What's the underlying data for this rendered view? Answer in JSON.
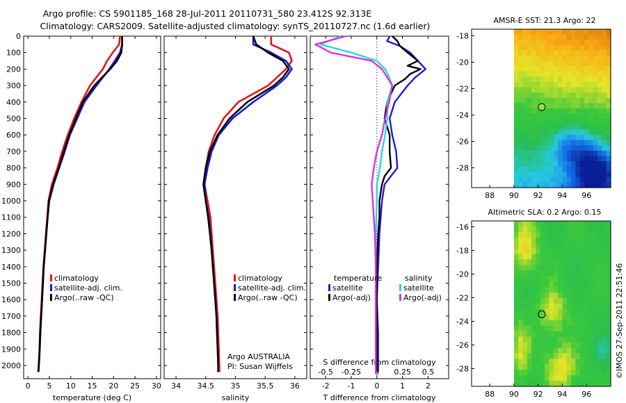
{
  "header": {
    "line1": "Argo profile: CS 5901185_168 28-Jul-2011 20110731_580 23.412S 92.313E",
    "line2": "Climatology: CARS2009. Satellite-adjusted climatology: synTS_20110727.nc (1.6d earlier)"
  },
  "side_label": "©IMOS 27-Sep-2011 22:51:46",
  "colors": {
    "climatology": "#e8141a",
    "satellite": "#1a1ad8",
    "argo": "#000000",
    "sal_satellite": "#25d8e0",
    "sal_argo": "#e030e0"
  },
  "chart_data": [
    {
      "type": "line",
      "id": "temperature",
      "xlabel": "temperature (deg C)",
      "ylabel": "",
      "xlim": [
        -1,
        31
      ],
      "ylim": [
        2080,
        0
      ],
      "x_ticks": [
        0,
        5,
        10,
        15,
        20,
        25,
        30
      ],
      "y_ticks": [
        0,
        100,
        200,
        300,
        400,
        500,
        600,
        700,
        800,
        900,
        1000,
        1100,
        1200,
        1300,
        1400,
        1500,
        1600,
        1700,
        1800,
        1900,
        2000
      ],
      "legend": [
        "climatology",
        "satellite-adj. clim.",
        "Argo(..raw -QC)"
      ],
      "series": [
        {
          "name": "climatology",
          "color": "#e8141a",
          "depth": [
            0,
            50,
            100,
            150,
            200,
            300,
            400,
            500,
            600,
            700,
            800,
            900,
            1000,
            1100,
            1200,
            1300,
            1400,
            1500,
            1600,
            1700,
            1800,
            1900,
            2000,
            2040
          ],
          "values": [
            21.5,
            21.3,
            19.8,
            18.5,
            17.5,
            14.5,
            12.5,
            10.8,
            9.3,
            8.0,
            6.9,
            5.6,
            4.8,
            4.5,
            4.2,
            3.9,
            3.6,
            3.4,
            3.2,
            3.0,
            2.8,
            2.7,
            2.5,
            2.4
          ]
        },
        {
          "name": "satellite-adj. clim.",
          "color": "#1a1ad8",
          "depth": [
            0,
            50,
            100,
            150,
            200,
            300,
            400,
            500,
            600,
            700,
            800,
            900,
            1000,
            1100,
            1200,
            1300,
            1400,
            1500,
            1600,
            1700,
            1800,
            1900,
            2000,
            2040
          ],
          "values": [
            22.0,
            22.0,
            21.5,
            20.3,
            19.0,
            16.0,
            13.2,
            11.5,
            9.8,
            8.6,
            7.3,
            6.0,
            5.0,
            4.6,
            4.3,
            4.0,
            3.7,
            3.5,
            3.3,
            3.1,
            2.9,
            2.75,
            2.55,
            2.45
          ]
        },
        {
          "name": "Argo(..raw -QC)",
          "color": "#000000",
          "depth": [
            0,
            50,
            100,
            150,
            200,
            300,
            400,
            500,
            600,
            700,
            800,
            900,
            1000,
            1100,
            1200,
            1300,
            1400,
            1500,
            1600,
            1700,
            1800,
            1900,
            2000,
            2040
          ],
          "values": [
            22.0,
            22.0,
            21.8,
            20.8,
            19.2,
            15.5,
            12.8,
            11.2,
            9.6,
            8.4,
            7.2,
            5.9,
            4.9,
            4.6,
            4.3,
            4.0,
            3.7,
            3.5,
            3.3,
            3.1,
            2.9,
            2.75,
            2.55,
            2.45
          ]
        }
      ]
    },
    {
      "type": "line",
      "id": "salinity",
      "xlabel": "salinity",
      "xlim": [
        33.8,
        36.2
      ],
      "ylim": [
        2080,
        0
      ],
      "x_ticks": [
        34,
        34.5,
        35,
        35.5,
        36
      ],
      "legend": [
        "climatology",
        "satellite-adj. clim.",
        "Argo(..raw -QC)"
      ],
      "annotation": [
        "Argo AUSTRALIA",
        "PI: Susan Wijffels"
      ],
      "series": [
        {
          "name": "climatology",
          "color": "#e8141a",
          "depth": [
            0,
            50,
            100,
            150,
            200,
            250,
            300,
            400,
            500,
            600,
            700,
            800,
            900,
            1000,
            1100,
            1200,
            1300,
            1400,
            1500,
            1600,
            1700,
            1800,
            1900,
            2000,
            2040
          ],
          "values": [
            35.6,
            35.6,
            35.9,
            35.95,
            35.85,
            35.7,
            35.55,
            35.05,
            34.8,
            34.65,
            34.55,
            34.5,
            34.48,
            34.53,
            34.58,
            34.6,
            34.62,
            34.64,
            34.66,
            34.68,
            34.7,
            34.71,
            34.72,
            34.73,
            34.73
          ]
        },
        {
          "name": "satellite-adj. clim.",
          "color": "#1a1ad8",
          "depth": [
            0,
            50,
            100,
            150,
            200,
            250,
            300,
            400,
            500,
            600,
            700,
            800,
            900,
            1000,
            1100,
            1200,
            1300,
            1400,
            1500,
            1600,
            1700,
            1800,
            1900,
            2000,
            2040
          ],
          "values": [
            35.3,
            35.3,
            35.6,
            35.85,
            35.95,
            35.85,
            35.7,
            35.3,
            34.95,
            34.72,
            34.6,
            34.53,
            34.48,
            34.5,
            34.55,
            34.58,
            34.6,
            34.62,
            34.64,
            34.66,
            34.68,
            34.69,
            34.7,
            34.71,
            34.71
          ]
        },
        {
          "name": "Argo(..raw -QC)",
          "color": "#000000",
          "depth": [
            0,
            50,
            100,
            150,
            200,
            250,
            300,
            400,
            500,
            600,
            700,
            800,
            900,
            1000,
            1100,
            1200,
            1300,
            1400,
            1500,
            1600,
            1700,
            1800,
            1900,
            2000,
            2040
          ],
          "values": [
            35.3,
            35.35,
            35.55,
            35.8,
            35.9,
            35.8,
            35.65,
            35.2,
            34.9,
            34.7,
            34.57,
            34.5,
            34.46,
            34.5,
            34.54,
            34.57,
            34.6,
            34.62,
            34.64,
            34.66,
            34.68,
            34.69,
            34.7,
            34.71,
            34.71
          ]
        }
      ]
    },
    {
      "type": "line",
      "id": "difference",
      "xlabel": "T difference from climatology",
      "xlabel_top": "S difference from climatology",
      "xlim": [
        -2.6,
        2.8
      ],
      "ylim": [
        2080,
        0
      ],
      "x_ticks": [
        -2,
        -1,
        0,
        1,
        2
      ],
      "x_ticks_sal": [
        "-0.5",
        "-0.25",
        "0",
        "0.25",
        "0.5"
      ],
      "x_ticks_sal_values": [
        -0.5,
        -0.25,
        0,
        0.25,
        0.5
      ],
      "legend_temperature_title": "temperature",
      "legend_salinity_title": "salinity",
      "legend_temperature": [
        "satellite",
        "Argo(-adj)"
      ],
      "legend_salinity": [
        "satellite",
        "Argo(-adj)"
      ],
      "series": [
        {
          "name": "T satellite",
          "color": "#1a1ad8",
          "depth": [
            0,
            30,
            60,
            100,
            150,
            200,
            250,
            300,
            400,
            500,
            600,
            700,
            800,
            900,
            1000,
            1100,
            1200,
            1400,
            1600,
            1800,
            2000,
            2040
          ],
          "values": [
            0.5,
            0.4,
            0.9,
            1.3,
            1.6,
            1.9,
            1.5,
            1.2,
            0.7,
            0.5,
            0.6,
            0.75,
            0.8,
            0.3,
            0.2,
            0.15,
            0.1,
            0.05,
            0.0,
            0.05,
            0.05,
            0.05
          ]
        },
        {
          "name": "T Argo(-adj)",
          "color": "#000000",
          "depth": [
            0,
            30,
            60,
            100,
            150,
            180,
            200,
            230,
            260,
            300,
            400,
            500,
            600,
            700,
            800,
            850,
            900,
            1000,
            1100,
            1200,
            1400,
            1600,
            1800,
            2000,
            2040
          ],
          "values": [
            0.6,
            0.8,
            0.9,
            1.2,
            1.6,
            1.2,
            1.7,
            1.3,
            1.1,
            0.7,
            0.4,
            0.3,
            0.5,
            0.5,
            0.55,
            0.3,
            0.2,
            0.1,
            0.1,
            0.05,
            0.0,
            0.0,
            0.0,
            0.0,
            0.0
          ]
        },
        {
          "name": "S satellite",
          "color": "#25d8e0",
          "depth": [
            0,
            50,
            100,
            150,
            200,
            250,
            300,
            400,
            500,
            600,
            700,
            800,
            900,
            1000,
            1200,
            1400,
            1600,
            1800,
            2000,
            2040
          ],
          "values": [
            -0.35,
            -0.55,
            -0.25,
            0.0,
            0.08,
            0.12,
            0.15,
            0.1,
            0.1,
            0.08,
            0.05,
            0.03,
            0.0,
            0.0,
            -0.01,
            -0.01,
            -0.01,
            -0.01,
            -0.01,
            -0.01
          ]
        },
        {
          "name": "S Argo(-adj)",
          "color": "#e030e0",
          "depth": [
            0,
            50,
            100,
            150,
            200,
            250,
            300,
            400,
            500,
            600,
            700,
            800,
            900,
            1000,
            1200,
            1400,
            1600,
            1800,
            2000,
            2040
          ],
          "values": [
            -0.3,
            -0.6,
            -0.45,
            -0.05,
            0.05,
            0.1,
            0.15,
            0.12,
            0.08,
            0.05,
            0.0,
            -0.03,
            -0.05,
            -0.04,
            -0.02,
            -0.01,
            -0.01,
            -0.01,
            -0.01,
            -0.01
          ]
        }
      ]
    },
    {
      "type": "heatmap",
      "id": "sst_map",
      "title": "AMSR-E SST: 21.3 Argo: 22",
      "xlim": [
        86.5,
        98
      ],
      "ylim": [
        -29.5,
        -17.5
      ],
      "x_ticks": [
        88,
        90,
        92,
        94,
        96
      ],
      "y_ticks": [
        -18,
        -20,
        -22,
        -24,
        -26,
        -28
      ],
      "data_start_lon": 90,
      "float_position": [
        92.3,
        -23.4
      ]
    },
    {
      "type": "heatmap",
      "id": "sla_map",
      "title": "Altimetric SLA: 0.2 Argo: 0.15",
      "xlim": [
        86.5,
        98
      ],
      "ylim": [
        -29.5,
        -15.5
      ],
      "x_ticks": [
        88,
        90,
        92,
        94,
        96
      ],
      "y_ticks": [
        -16,
        -18,
        -20,
        -22,
        -24,
        -26,
        -28
      ],
      "data_start_lon": 90,
      "float_position": [
        92.3,
        -23.4
      ]
    }
  ]
}
